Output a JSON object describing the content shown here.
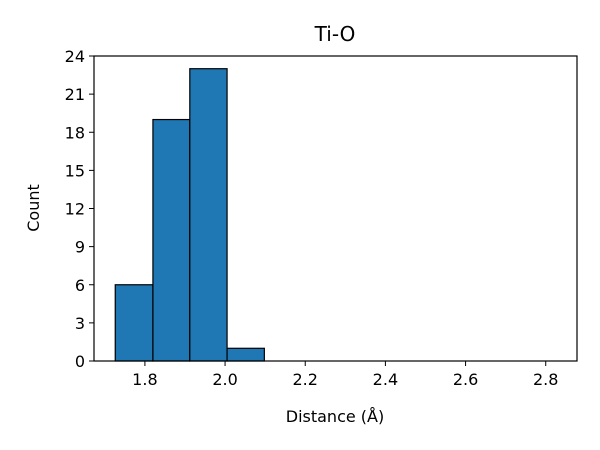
{
  "chart_data": {
    "type": "bar",
    "title": "Ti-O",
    "xlabel": "Distance (Å)",
    "ylabel": "Count",
    "xlim": [
      1.673,
      2.878
    ],
    "ylim": [
      0,
      24
    ],
    "xticks": [
      1.8,
      2.0,
      2.2,
      2.4,
      2.6,
      2.8
    ],
    "xtick_labels": [
      "1.8",
      "2.0",
      "2.2",
      "2.4",
      "2.6",
      "2.8"
    ],
    "yticks": [
      0,
      3,
      6,
      9,
      12,
      15,
      18,
      21,
      24
    ],
    "ytick_labels": [
      "0",
      "3",
      "6",
      "9",
      "12",
      "15",
      "18",
      "21",
      "24"
    ],
    "bins": [
      {
        "x0": 1.726,
        "x1": 1.82,
        "count": 6
      },
      {
        "x0": 1.82,
        "x1": 1.912,
        "count": 19
      },
      {
        "x0": 1.912,
        "x1": 2.005,
        "count": 23
      },
      {
        "x0": 2.005,
        "x1": 2.098,
        "count": 1
      },
      {
        "x0": 2.098,
        "x1": 2.191,
        "count": 0
      },
      {
        "x0": 2.191,
        "x1": 2.284,
        "count": 0
      },
      {
        "x0": 2.284,
        "x1": 2.377,
        "count": 0
      },
      {
        "x0": 2.377,
        "x1": 2.47,
        "count": 0
      },
      {
        "x0": 2.47,
        "x1": 2.563,
        "count": 0
      },
      {
        "x0": 2.563,
        "x1": 2.656,
        "count": 0
      },
      {
        "x0": 2.656,
        "x1": 2.749,
        "count": 0
      },
      {
        "x0": 2.749,
        "x1": 2.842,
        "count": 0
      }
    ],
    "bar_color": "#1f77b4",
    "edge_color": "#000000",
    "grid": false
  }
}
